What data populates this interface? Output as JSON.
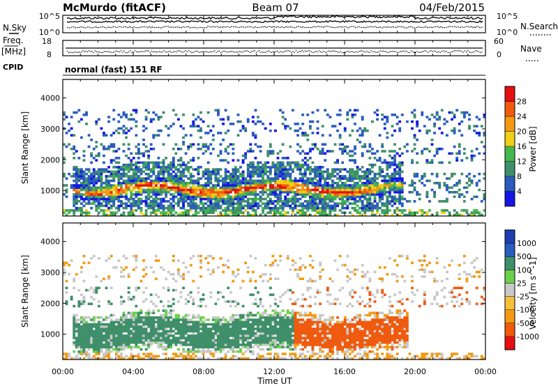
{
  "header": {
    "station": "McMurdo (fitACF)",
    "beam": "Beam 07",
    "date": "04/Feb/2015"
  },
  "strips": {
    "nsky_label": "N.Sky",
    "nsearch_label": "N.Search",
    "nsky_ticks": [
      "10^5",
      "10^0"
    ],
    "nsearch_ticks": [
      "10^5",
      "10^0"
    ],
    "freq_label_line1": "Freq.",
    "freq_label_line2": "[MHz]",
    "freq_ticks": [
      "18",
      "8"
    ],
    "nave_label": "Nave",
    "nave_ticks": [
      "60",
      "0"
    ],
    "cpid_label": "CPID",
    "cpid_text": "normal (fast) 151 RF"
  },
  "colors": {
    "power": [
      "#1515e6",
      "#2a5cbf",
      "#3f8f6a",
      "#44b84d",
      "#f0d018",
      "#f39a12",
      "#ef5a0e",
      "#e61010"
    ],
    "velocity": [
      "#e61010",
      "#ef5a0e",
      "#f39a12",
      "#f7c03a",
      "#c8c8c8",
      "#6ad04a",
      "#3f8f6a",
      "#2a5cbf",
      "#1e3fb0"
    ]
  },
  "chart_data": [
    {
      "type": "heatmap",
      "xlabel": "",
      "ylabel": "Slant Range [km]",
      "colorbar_label": "Power [dB]",
      "colorbar_ticks": [
        "28",
        "24",
        "20",
        "16",
        "12",
        "8",
        "4"
      ],
      "y_ticks": [
        "1000",
        "2000",
        "3000",
        "4000"
      ],
      "ylim": [
        180,
        4600
      ],
      "xlim": [
        0,
        24
      ],
      "clim": [
        0,
        32
      ],
      "features": [
        {
          "x_start": 0.5,
          "x_end": 19.5,
          "y_center": 1050,
          "note": "strong main band 20-30 dB"
        },
        {
          "x_start": 0,
          "x_end": 24,
          "y_center": 2200,
          "note": "weaker echoes 4-12 dB"
        },
        {
          "x_start": 0,
          "x_end": 24,
          "y_center": 3200,
          "note": "sparse far-range echoes"
        }
      ]
    },
    {
      "type": "heatmap",
      "xlabel": "Time UT",
      "ylabel": "Slant Range [km]",
      "colorbar_label": "Velocity [m s^-1]",
      "colorbar_ticks": [
        "1000",
        "500",
        "100",
        "25",
        "-25",
        "-100",
        "-500",
        "-1000"
      ],
      "y_ticks": [
        "1000",
        "2000",
        "3000",
        "4000"
      ],
      "x_ticks": [
        "00:00",
        "04:00",
        "08:00",
        "12:00",
        "16:00",
        "20:00",
        "00:00"
      ],
      "ylim": [
        180,
        4600
      ],
      "xlim": [
        0,
        24
      ],
      "clim": [
        -1000,
        1000
      ],
      "features": [
        {
          "x_start": 0.5,
          "x_end": 13.2,
          "velocity": "100 to 500",
          "note": "positive (green) flow"
        },
        {
          "x_start": 13.2,
          "x_end": 18.5,
          "velocity": "-500 to -100",
          "note": "negative (orange) flow"
        }
      ]
    }
  ]
}
